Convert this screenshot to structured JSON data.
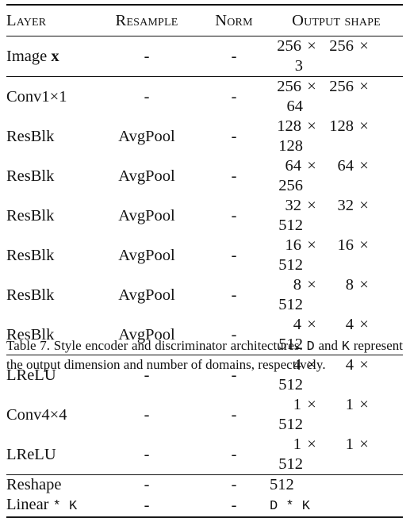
{
  "table": {
    "headers": [
      "Layer",
      "Resample",
      "Norm",
      "Output shape"
    ],
    "groups": [
      [
        {
          "layer": "Image ",
          "layer_sym": "x",
          "resample": "-",
          "norm": "-",
          "shape": [
            "256",
            "256",
            "3"
          ]
        }
      ],
      [
        {
          "layer": "Conv1×1",
          "resample": "-",
          "norm": "-",
          "shape": [
            "256",
            "256",
            "64"
          ]
        },
        {
          "layer": "ResBlk",
          "resample": "AvgPool",
          "norm": "-",
          "shape": [
            "128",
            "128",
            "128"
          ]
        },
        {
          "layer": "ResBlk",
          "resample": "AvgPool",
          "norm": "-",
          "shape": [
            "64",
            "64",
            "256"
          ]
        },
        {
          "layer": "ResBlk",
          "resample": "AvgPool",
          "norm": "-",
          "shape": [
            "32",
            "32",
            "512"
          ]
        },
        {
          "layer": "ResBlk",
          "resample": "AvgPool",
          "norm": "-",
          "shape": [
            "16",
            "16",
            "512"
          ]
        },
        {
          "layer": "ResBlk",
          "resample": "AvgPool",
          "norm": "-",
          "shape": [
            "8",
            "8",
            "512"
          ]
        },
        {
          "layer": "ResBlk",
          "resample": "AvgPool",
          "norm": "-",
          "shape": [
            "4",
            "4",
            "512"
          ]
        }
      ],
      [
        {
          "layer": "LReLU",
          "resample": "-",
          "norm": "-",
          "shape": [
            "4",
            "4",
            "512"
          ]
        },
        {
          "layer": "Conv4×4",
          "resample": "-",
          "norm": "-",
          "shape": [
            "1",
            "1",
            "512"
          ]
        },
        {
          "layer": "LReLU",
          "resample": "-",
          "norm": "-",
          "shape": [
            "1",
            "1",
            "512"
          ]
        }
      ],
      [
        {
          "layer": "Reshape",
          "resample": "-",
          "norm": "-",
          "shape_text": "512"
        },
        {
          "layer": "Linear ",
          "layer_mono": "* K",
          "resample": "-",
          "norm": "-",
          "shape_mono": "D * K"
        }
      ]
    ],
    "times_symbol": "×"
  },
  "caption": {
    "part1": "Table 7. Style encoder and discriminator architectures. ",
    "d": "D",
    "part2": " and ",
    "k": "K",
    "part3": " represent the output dimension and number of domains, respectively."
  }
}
